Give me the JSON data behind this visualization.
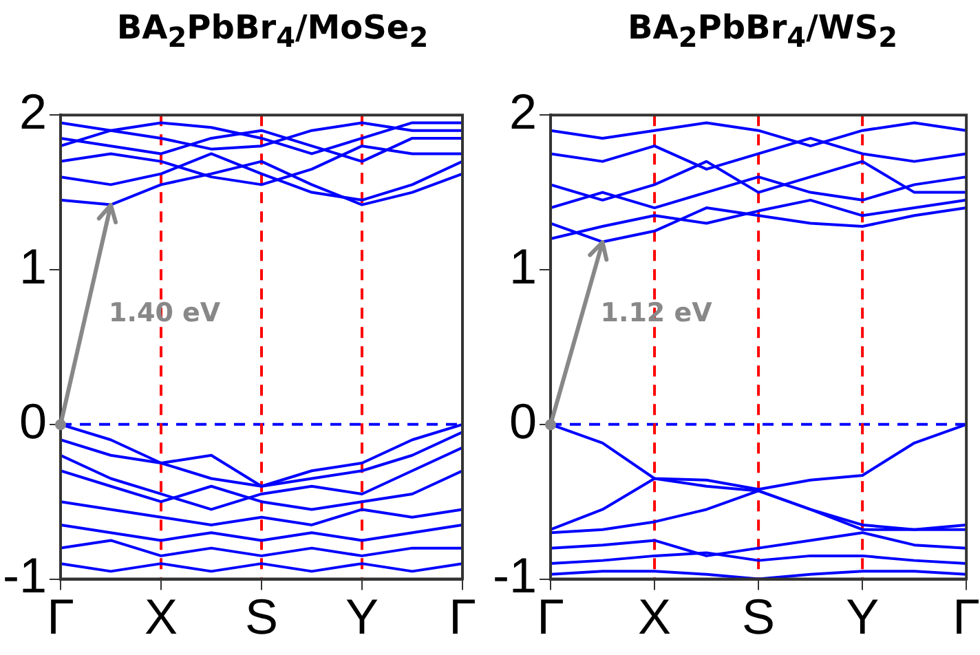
{
  "chart_data": [
    {
      "type": "line",
      "title": "BA$_{2}$PbBr$_{4}$/MoSe$_{2}$",
      "categories": [
        "Γ",
        null,
        "X",
        null,
        "S",
        null,
        "Y",
        null,
        "Γ"
      ],
      "ylim": [
        -1,
        2
      ],
      "yticks": [
        -1,
        0,
        1,
        2
      ],
      "marker": "none",
      "series": [
        {
          "color": "#0000ff",
          "values": [
            1.45,
            1.42,
            1.55,
            1.62,
            1.7,
            1.55,
            1.42,
            1.5,
            1.62
          ]
        },
        {
          "color": "#0000ff",
          "values": [
            1.6,
            1.55,
            1.62,
            1.75,
            1.62,
            1.5,
            1.45,
            1.55,
            1.7
          ]
        },
        {
          "color": "#0000ff",
          "values": [
            1.7,
            1.75,
            1.7,
            1.6,
            1.55,
            1.65,
            1.8,
            1.75,
            1.75
          ]
        },
        {
          "color": "#0000ff",
          "values": [
            1.85,
            1.8,
            1.75,
            1.85,
            1.9,
            1.8,
            1.7,
            1.85,
            1.85
          ]
        },
        {
          "color": "#0000ff",
          "values": [
            1.95,
            1.9,
            1.85,
            1.78,
            1.8,
            1.9,
            1.95,
            1.9,
            1.9
          ]
        },
        {
          "color": "#0000ff",
          "values": [
            1.8,
            1.9,
            1.95,
            1.92,
            1.85,
            1.75,
            1.85,
            1.95,
            1.95
          ]
        },
        {
          "color": "#0000ff",
          "values": [
            0,
            -0.1,
            -0.25,
            -0.35,
            -0.4,
            -0.3,
            -0.25,
            -0.1,
            0
          ]
        },
        {
          "color": "#0000ff",
          "values": [
            -0.1,
            -0.2,
            -0.25,
            -0.2,
            -0.4,
            -0.35,
            -0.3,
            -0.2,
            -0.05
          ]
        },
        {
          "color": "#0000ff",
          "values": [
            -0.2,
            -0.35,
            -0.45,
            -0.55,
            -0.45,
            -0.4,
            -0.45,
            -0.3,
            -0.15
          ]
        },
        {
          "color": "#0000ff",
          "values": [
            -0.3,
            -0.4,
            -0.5,
            -0.4,
            -0.5,
            -0.55,
            -0.5,
            -0.45,
            -0.3
          ]
        },
        {
          "color": "#0000ff",
          "values": [
            -0.5,
            -0.55,
            -0.6,
            -0.65,
            -0.6,
            -0.65,
            -0.55,
            -0.6,
            -0.55
          ]
        },
        {
          "color": "#0000ff",
          "values": [
            -0.65,
            -0.7,
            -0.75,
            -0.7,
            -0.75,
            -0.7,
            -0.75,
            -0.7,
            -0.65
          ]
        },
        {
          "color": "#0000ff",
          "values": [
            -0.8,
            -0.75,
            -0.85,
            -0.8,
            -0.85,
            -0.8,
            -0.85,
            -0.8,
            -0.8
          ]
        },
        {
          "color": "#0000ff",
          "values": [
            -0.9,
            -0.95,
            -0.9,
            -0.95,
            -0.9,
            -0.95,
            -0.9,
            -0.95,
            -0.9
          ]
        }
      ],
      "ref_lines": [
        {
          "axis": "y",
          "value": 0,
          "color": "#0000ff",
          "line_style": "dashed"
        },
        {
          "axis": "x",
          "value": "X",
          "color": "#ff0000",
          "line_style": "dashed"
        },
        {
          "axis": "x",
          "value": "S",
          "color": "#ff0000",
          "line_style": "dashed"
        },
        {
          "axis": "x",
          "value": "Y",
          "color": "#ff0000",
          "line_style": "dashed"
        }
      ],
      "annotations": [
        "1.40 eV"
      ]
    },
    {
      "type": "line",
      "title": "BA$_{2}$PbBr$_{4}$/WS$_{2}$",
      "categories": [
        "Γ",
        null,
        "X",
        null,
        "S",
        null,
        "Y",
        null,
        "Γ"
      ],
      "ylim": [
        -1,
        2
      ],
      "yticks": [
        -1,
        0,
        1,
        2
      ],
      "marker": "none",
      "series": [
        {
          "color": "#0000ff",
          "values": [
            1.3,
            1.18,
            1.25,
            1.4,
            1.35,
            1.3,
            1.28,
            1.35,
            1.4
          ]
        },
        {
          "color": "#0000ff",
          "values": [
            1.2,
            1.28,
            1.35,
            1.3,
            1.38,
            1.45,
            1.35,
            1.4,
            1.45
          ]
        },
        {
          "color": "#0000ff",
          "values": [
            1.4,
            1.5,
            1.4,
            1.5,
            1.6,
            1.5,
            1.45,
            1.55,
            1.6
          ]
        },
        {
          "color": "#0000ff",
          "values": [
            1.55,
            1.45,
            1.55,
            1.7,
            1.5,
            1.6,
            1.7,
            1.5,
            1.5
          ]
        },
        {
          "color": "#0000ff",
          "values": [
            1.75,
            1.7,
            1.8,
            1.65,
            1.75,
            1.85,
            1.75,
            1.7,
            1.75
          ]
        },
        {
          "color": "#0000ff",
          "values": [
            1.9,
            1.85,
            1.9,
            1.95,
            1.9,
            1.8,
            1.9,
            1.95,
            1.9
          ]
        },
        {
          "color": "#0000ff",
          "values": [
            0,
            -0.12,
            -0.35,
            -0.36,
            -0.42,
            -0.36,
            -0.33,
            -0.12,
            0
          ]
        },
        {
          "color": "#0000ff",
          "values": [
            -0.68,
            -0.55,
            -0.35,
            -0.4,
            -0.43,
            -0.55,
            -0.65,
            -0.68,
            -0.68
          ]
        },
        {
          "color": "#0000ff",
          "values": [
            -0.7,
            -0.68,
            -0.63,
            -0.55,
            -0.43,
            -0.55,
            -0.68,
            -0.68,
            -0.65
          ]
        },
        {
          "color": "#0000ff",
          "values": [
            -0.8,
            -0.78,
            -0.75,
            -0.85,
            -0.8,
            -0.75,
            -0.7,
            -0.78,
            -0.8
          ]
        },
        {
          "color": "#0000ff",
          "values": [
            -0.9,
            -0.88,
            -0.85,
            -0.83,
            -0.88,
            -0.85,
            -0.85,
            -0.88,
            -0.9
          ]
        },
        {
          "color": "#0000ff",
          "values": [
            -0.97,
            -0.95,
            -0.95,
            -0.97,
            -1,
            -0.97,
            -0.95,
            -0.95,
            -0.97
          ]
        }
      ],
      "ref_lines": [
        {
          "axis": "y",
          "value": 0,
          "color": "#0000ff",
          "line_style": "dashed"
        },
        {
          "axis": "x",
          "value": "X",
          "color": "#ff0000",
          "line_style": "dashed"
        },
        {
          "axis": "x",
          "value": "S",
          "color": "#ff0000",
          "line_style": "dashed"
        },
        {
          "axis": "x",
          "value": "Y",
          "color": "#ff0000",
          "line_style": "dashed"
        }
      ],
      "annotations": [
        "1.12 eV"
      ]
    }
  ]
}
